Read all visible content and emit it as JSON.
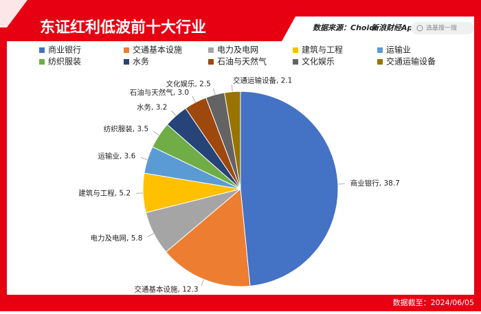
{
  "chart_data": {
    "type": "pie",
    "title": "东证红利低波前十大行业",
    "source": "数据来源：Choice",
    "brand": "新浪财经App",
    "search": "选基搜一搜",
    "footer": "数据截至：2024/06/05",
    "categories": [
      "商业银行",
      "交通基本设施",
      "电力及电网",
      "建筑与工程",
      "运输业",
      "纺织服装",
      "水务",
      "石油与天然气",
      "文化娱乐",
      "交通运输设备"
    ],
    "values": [
      38.7,
      12.3,
      5.8,
      5.2,
      3.6,
      3.5,
      3.2,
      3.0,
      2.5,
      2.1
    ],
    "value_labels": [
      "商业银行, 38.7",
      "交通基本设施, 12.3",
      "电力及电网, 5.8",
      "建筑与工程, 5.2",
      "运输业, 3.6",
      "纺织服装, 3.5",
      "水务, 3.2",
      "石油与天然气, 3.0",
      "文化娱乐, 2.5",
      "交通运输设备, 2.1"
    ],
    "colors": [
      "#4472c4",
      "#ed7d31",
      "#a5a5a5",
      "#ffc000",
      "#5b9bd5",
      "#70ad47",
      "#264478",
      "#9e480e",
      "#636363",
      "#997300"
    ],
    "legend": "top"
  }
}
